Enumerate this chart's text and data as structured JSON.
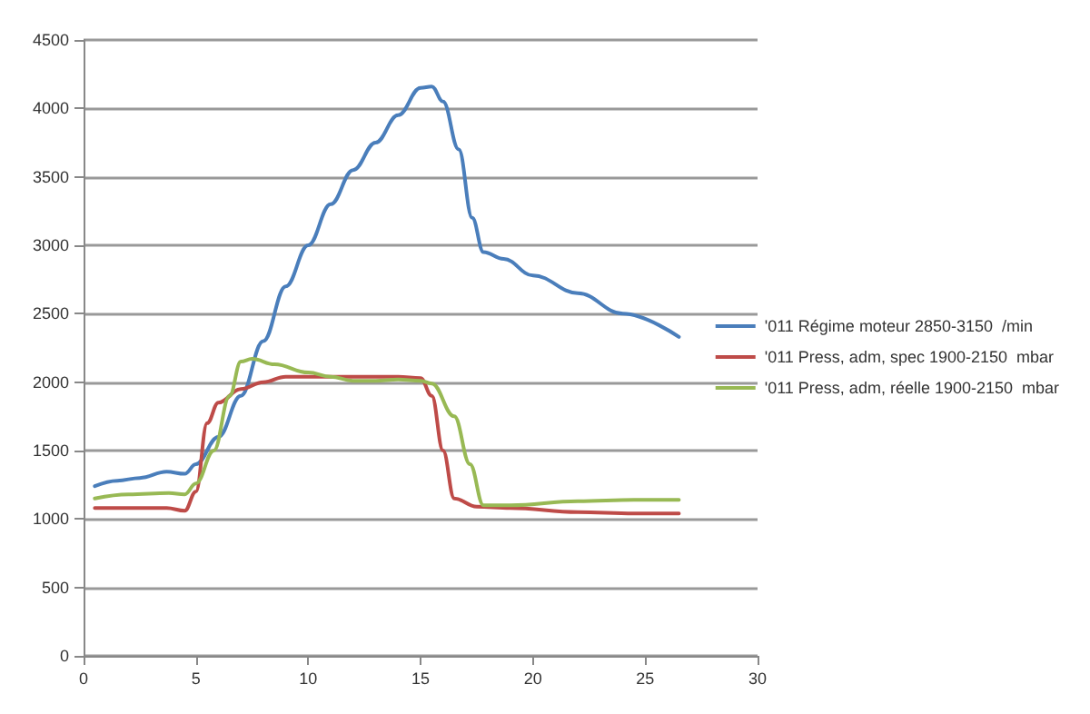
{
  "chart_data": {
    "type": "line",
    "xlim": [
      0,
      30
    ],
    "xticks": [
      0,
      5,
      10,
      15,
      20,
      25,
      30
    ],
    "ylim": [
      0,
      4500
    ],
    "yticks": [
      0,
      500,
      1000,
      1500,
      2000,
      2500,
      3000,
      3500,
      4000,
      4500
    ],
    "grid": "y",
    "legend": "right",
    "marker": "none",
    "line_style": "solid",
    "series": [
      {
        "name": "'011 Régime moteur 2850-3150  /min",
        "color": "#4a7ebb",
        "x": [
          0.5,
          1.5,
          2.5,
          3.7,
          4.5,
          5,
          6,
          7,
          8,
          9,
          10,
          11,
          12,
          13,
          14,
          15,
          15.5,
          16,
          16.7,
          17.3,
          17.8,
          18.7,
          20,
          22,
          24,
          26.5
        ],
        "values": [
          1240,
          1280,
          1300,
          1345,
          1330,
          1400,
          1600,
          1900,
          2300,
          2700,
          3000,
          3300,
          3550,
          3750,
          3950,
          4150,
          4160,
          4050,
          3700,
          3200,
          2950,
          2900,
          2780,
          2650,
          2500,
          2330
        ]
      },
      {
        "name": "'011 Press, adm, spec 1900-2150  mbar",
        "color": "#be4b48",
        "x": [
          0.5,
          3.7,
          4.5,
          5,
          5.5,
          6,
          7,
          8,
          9,
          10,
          12,
          14,
          15,
          15.5,
          16,
          16.5,
          17.5,
          19,
          22,
          24.5,
          26.5
        ],
        "values": [
          1080,
          1080,
          1060,
          1200,
          1700,
          1850,
          1950,
          2000,
          2040,
          2040,
          2040,
          2040,
          2030,
          1900,
          1500,
          1150,
          1090,
          1080,
          1050,
          1040,
          1040
        ]
      },
      {
        "name": "'011 Press, adm, réelle 1900-2150  mbar",
        "color": "#98b954",
        "x": [
          0.5,
          2,
          3.8,
          4.5,
          5,
          5.8,
          6.5,
          7,
          7.5,
          8.5,
          10,
          11,
          12,
          13,
          14,
          15,
          15.5,
          16.5,
          17.2,
          17.8,
          19,
          22,
          24.5,
          26.5
        ],
        "values": [
          1150,
          1180,
          1190,
          1180,
          1260,
          1500,
          1900,
          2150,
          2170,
          2130,
          2070,
          2040,
          2010,
          2010,
          2020,
          2010,
          1990,
          1750,
          1400,
          1100,
          1100,
          1130,
          1140,
          1140
        ]
      }
    ]
  }
}
